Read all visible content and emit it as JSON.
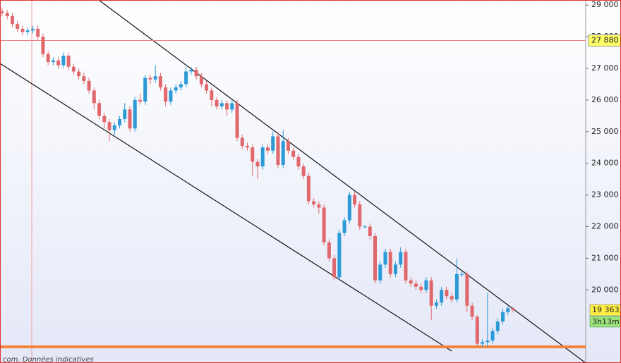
{
  "chart_data": {
    "type": "candlestick",
    "categories": [
      null,
      null,
      null,
      null,
      null,
      null,
      null,
      null,
      null,
      null,
      null,
      null,
      null,
      null,
      null,
      null,
      null,
      null,
      null,
      null,
      null,
      null,
      null,
      null,
      null,
      null,
      null,
      null,
      null,
      null,
      null,
      null,
      null,
      null,
      null,
      null,
      null,
      null,
      null,
      null,
      null,
      null,
      null,
      null,
      null,
      null,
      null,
      null,
      null,
      null,
      null,
      null,
      null,
      null,
      null,
      null,
      null,
      null,
      null,
      null,
      null,
      null,
      null,
      null,
      null,
      null,
      null,
      null,
      null,
      null,
      null,
      null,
      null,
      null,
      null,
      null,
      null,
      null,
      null,
      null,
      null,
      null,
      null,
      null,
      null,
      null,
      null,
      null,
      null,
      null,
      null,
      null,
      null,
      null,
      null,
      null,
      null,
      null,
      null,
      null,
      null
    ],
    "open": [
      28800,
      28750,
      28650,
      28400,
      28250,
      28150,
      28200,
      28250,
      28000,
      27450,
      27200,
      27250,
      27100,
      27400,
      27050,
      26900,
      26750,
      26600,
      26300,
      25900,
      25500,
      25300,
      25050,
      25200,
      25400,
      25700,
      25100,
      26000,
      25950,
      26700,
      26650,
      26750,
      26400,
      25950,
      26300,
      26400,
      26500,
      26900,
      26950,
      26750,
      26500,
      26300,
      26000,
      25800,
      25900,
      25700,
      25900,
      24800,
      24550,
      24500,
      24050,
      23900,
      24500,
      24400,
      24850,
      23950,
      24700,
      24400,
      24200,
      23900,
      23600,
      22800,
      22700,
      22600,
      21500,
      21000,
      20400,
      21800,
      22200,
      23000,
      22700,
      22000,
      22000,
      21700,
      20300,
      20800,
      21200,
      20500,
      20800,
      21200,
      20300,
      20200,
      20100,
      20000,
      20300,
      19500,
      19600,
      20000,
      19800,
      19700,
      20500,
      20500,
      19500,
      19150,
      18300,
      18350,
      18400,
      18700,
      19000,
      19300,
      19420
    ],
    "high": [
      28900,
      28850,
      28750,
      28500,
      28350,
      28300,
      28350,
      28350,
      28100,
      27550,
      27350,
      27350,
      27500,
      27500,
      27150,
      27000,
      26850,
      26700,
      26400,
      26000,
      25600,
      25400,
      25300,
      25500,
      25900,
      25800,
      26100,
      26200,
      26800,
      26800,
      27100,
      26850,
      26500,
      26400,
      26500,
      26600,
      27050,
      27050,
      27050,
      26850,
      26600,
      26400,
      26100,
      26000,
      26000,
      26000,
      26000,
      24900,
      24650,
      24600,
      24150,
      24600,
      24600,
      25000,
      25000,
      25050,
      24800,
      24500,
      24300,
      24000,
      23700,
      22900,
      22800,
      22700,
      21600,
      21100,
      21900,
      22300,
      23100,
      23100,
      22800,
      22050,
      22100,
      21800,
      20900,
      21300,
      21300,
      20900,
      21350,
      21300,
      20400,
      20300,
      20200,
      20400,
      20400,
      19700,
      20100,
      20100,
      19900,
      21000,
      20600,
      20600,
      19600,
      19200,
      18450,
      19900,
      18800,
      19100,
      19400,
      19500,
      19450
    ],
    "low": [
      28650,
      28550,
      28300,
      28150,
      28050,
      28050,
      28100,
      27900,
      27350,
      27100,
      27100,
      27000,
      27000,
      26950,
      26800,
      26650,
      26500,
      26200,
      25700,
      25400,
      25100,
      24700,
      24900,
      25100,
      25300,
      25000,
      25000,
      25850,
      25850,
      26500,
      26550,
      26300,
      25800,
      25850,
      26200,
      26300,
      26400,
      26800,
      26650,
      26400,
      26200,
      25800,
      25700,
      25700,
      25500,
      25600,
      24700,
      24450,
      24400,
      23600,
      23500,
      23800,
      24300,
      24300,
      23850,
      23850,
      24300,
      24100,
      23800,
      23500,
      22700,
      22600,
      22400,
      21400,
      20900,
      20300,
      20300,
      21700,
      22100,
      22600,
      21900,
      21950,
      21600,
      20200,
      20200,
      20700,
      20400,
      20400,
      20700,
      20200,
      20100,
      20000,
      19900,
      19900,
      19050,
      19400,
      19500,
      19700,
      19600,
      19600,
      20400,
      19300,
      19050,
      18200,
      18200,
      18200,
      18300,
      18600,
      18900,
      19200,
      19300
    ],
    "close": [
      28750,
      28650,
      28400,
      28250,
      28150,
      28200,
      28250,
      28000,
      27450,
      27200,
      27250,
      27100,
      27400,
      27050,
      26900,
      26750,
      26600,
      26300,
      25900,
      25500,
      25300,
      25050,
      25200,
      25400,
      25700,
      25100,
      26000,
      25950,
      26700,
      26650,
      26750,
      26400,
      25950,
      26300,
      26400,
      26500,
      26900,
      26950,
      26750,
      26500,
      26300,
      26000,
      25800,
      25900,
      25700,
      25900,
      24800,
      24550,
      24500,
      24050,
      23900,
      24500,
      24400,
      24850,
      23950,
      24700,
      24400,
      24200,
      23900,
      23600,
      22800,
      22700,
      22600,
      21500,
      21000,
      20400,
      21800,
      22200,
      23000,
      22700,
      22000,
      22000,
      21700,
      20300,
      20800,
      21200,
      20500,
      20800,
      21200,
      20300,
      20200,
      20100,
      20000,
      20300,
      19500,
      19600,
      20000,
      19800,
      19700,
      20500,
      20500,
      19500,
      19150,
      18300,
      18350,
      18400,
      18700,
      19000,
      19300,
      19420,
      19363
    ],
    "up_color": "#2b9ad6",
    "down_color": "#e0686c",
    "ylim": [
      17690,
      29160
    ],
    "yticks": [
      {
        "value": 20000,
        "label": "20 000"
      },
      {
        "value": 21000,
        "label": "21 000"
      },
      {
        "value": 22000,
        "label": "22 000"
      },
      {
        "value": 23000,
        "label": "23 000"
      },
      {
        "value": 24000,
        "label": "24 000"
      },
      {
        "value": 25000,
        "label": "25 000"
      },
      {
        "value": 26000,
        "label": "26 000"
      },
      {
        "value": 27000,
        "label": "27 000"
      },
      {
        "value": 28000,
        "label": "28 000"
      },
      {
        "value": 29000,
        "label": "29 000"
      }
    ],
    "levels": [
      {
        "value": 18200,
        "color": "#f4843c"
      }
    ],
    "price_lines": [
      {
        "value": 27880,
        "label": "27 880",
        "color": "#f08080"
      }
    ],
    "last_price": {
      "value": 19363,
      "label": "19 363,"
    },
    "countdown": "3h13m",
    "footer_note": "com. Données indicatives"
  }
}
